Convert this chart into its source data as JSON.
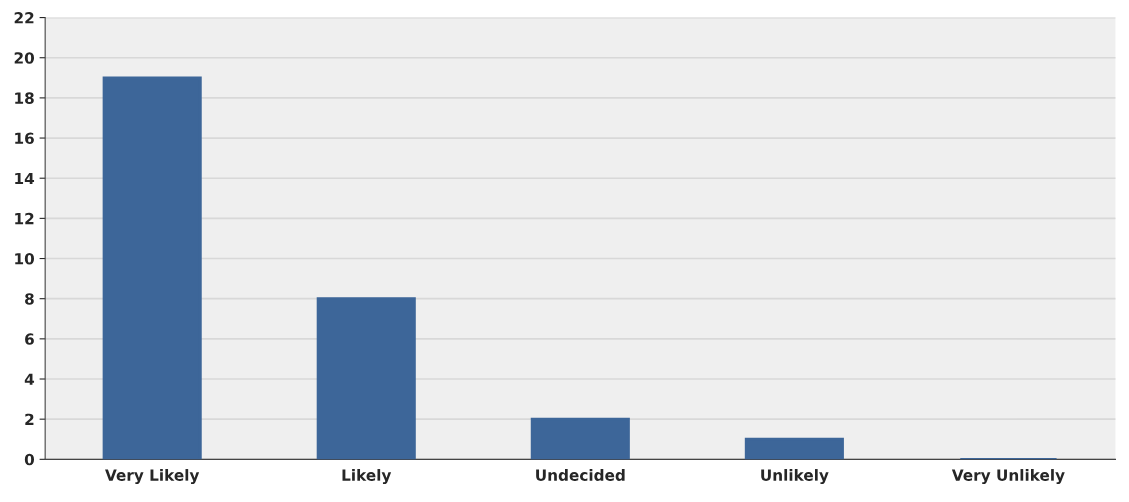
{
  "chart_data": {
    "type": "bar",
    "categories": [
      "Very Likely",
      "Likely",
      "Undecided",
      "Unlikely",
      "Very Unlikely"
    ],
    "values": [
      19,
      8,
      2,
      1,
      0
    ],
    "color": "#3d6699",
    "ylim": [
      0,
      22
    ],
    "yticks": [
      0,
      2,
      4,
      6,
      8,
      10,
      12,
      14,
      16,
      18,
      20,
      22
    ],
    "grid": "y"
  }
}
